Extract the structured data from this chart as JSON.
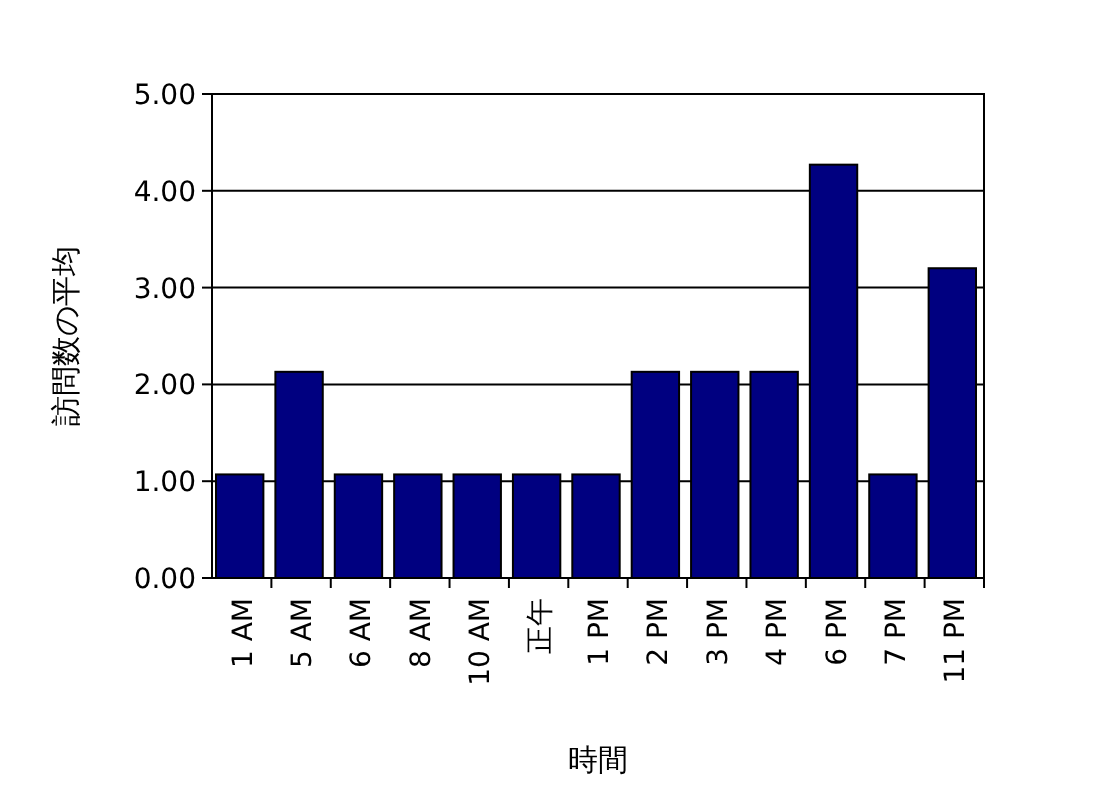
{
  "chart_data": {
    "type": "bar",
    "xlabel": "時間",
    "ylabel": "訪問数の平均",
    "categories": [
      "1 AM",
      "5 AM",
      "6 AM",
      "8 AM",
      "10 AM",
      "正午",
      "1 PM",
      "2 PM",
      "3 PM",
      "4 PM",
      "6 PM",
      "7 PM",
      "11 PM"
    ],
    "values": [
      1.07,
      2.13,
      1.07,
      1.07,
      1.07,
      1.07,
      1.07,
      2.13,
      2.13,
      2.13,
      4.27,
      1.07,
      3.2
    ],
    "color": "#000080",
    "ylim": [
      0,
      5
    ],
    "yticks": [
      {
        "value": 0,
        "label": "0.00"
      },
      {
        "value": 1,
        "label": "1.00"
      },
      {
        "value": 2,
        "label": "2.00"
      },
      {
        "value": 3,
        "label": "3.00"
      },
      {
        "value": 4,
        "label": "4.00"
      },
      {
        "value": 5,
        "label": "5.00"
      }
    ],
    "grid": "y"
  }
}
